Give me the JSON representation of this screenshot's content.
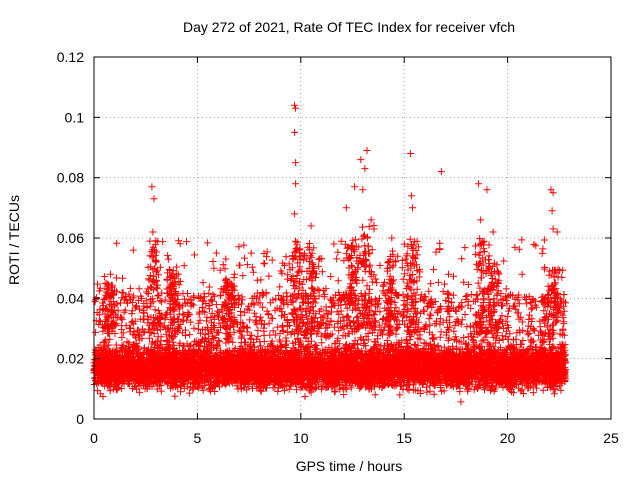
{
  "chart_data": {
    "type": "scatter",
    "title": "Day 272 of 2021, Rate Of TEC Index for receiver vfch",
    "xlabel": "GPS time / hours",
    "ylabel": "ROTI / TECUs",
    "xlim": [
      0,
      25
    ],
    "ylim": [
      0,
      0.12
    ],
    "xticks": [
      0,
      5,
      10,
      15,
      20,
      25
    ],
    "xtick_labels": [
      "0",
      "5",
      "10",
      "15",
      "20",
      "25"
    ],
    "yticks": [
      0,
      0.02,
      0.04,
      0.06,
      0.08,
      0.1,
      0.12
    ],
    "ytick_labels": [
      "0",
      "0.02",
      "0.04",
      "0.06",
      "0.08",
      "0.1",
      "0.12"
    ],
    "grid": true,
    "marker": "+",
    "color": "#ff0000",
    "series": [
      {
        "name": "ROTI",
        "description_range_hours": [
          0,
          22.8
        ],
        "typical_band": [
          0.01,
          0.03
        ],
        "spikes": [
          {
            "x": 0.8,
            "y": 0.048
          },
          {
            "x": 1.9,
            "y": 0.056
          },
          {
            "x": 2.8,
            "y": 0.077
          },
          {
            "x": 2.9,
            "y": 0.073
          },
          {
            "x": 2.85,
            "y": 0.062
          },
          {
            "x": 3.6,
            "y": 0.053
          },
          {
            "x": 5.8,
            "y": 0.05
          },
          {
            "x": 6.8,
            "y": 0.048
          },
          {
            "x": 7.6,
            "y": 0.055
          },
          {
            "x": 9.7,
            "y": 0.104
          },
          {
            "x": 9.75,
            "y": 0.103
          },
          {
            "x": 9.7,
            "y": 0.095
          },
          {
            "x": 9.75,
            "y": 0.085
          },
          {
            "x": 9.75,
            "y": 0.078
          },
          {
            "x": 9.7,
            "y": 0.068
          },
          {
            "x": 10.5,
            "y": 0.064
          },
          {
            "x": 11.6,
            "y": 0.058
          },
          {
            "x": 12.2,
            "y": 0.07
          },
          {
            "x": 12.6,
            "y": 0.077
          },
          {
            "x": 12.9,
            "y": 0.086
          },
          {
            "x": 13.2,
            "y": 0.089
          },
          {
            "x": 13.1,
            "y": 0.083
          },
          {
            "x": 13.0,
            "y": 0.076
          },
          {
            "x": 13.4,
            "y": 0.066
          },
          {
            "x": 14.4,
            "y": 0.06
          },
          {
            "x": 15.3,
            "y": 0.088
          },
          {
            "x": 15.35,
            "y": 0.074
          },
          {
            "x": 15.4,
            "y": 0.07
          },
          {
            "x": 16.8,
            "y": 0.082
          },
          {
            "x": 18.6,
            "y": 0.078
          },
          {
            "x": 19.0,
            "y": 0.076
          },
          {
            "x": 18.7,
            "y": 0.066
          },
          {
            "x": 19.3,
            "y": 0.062
          },
          {
            "x": 20.7,
            "y": 0.048
          },
          {
            "x": 22.1,
            "y": 0.076
          },
          {
            "x": 22.2,
            "y": 0.075
          },
          {
            "x": 22.15,
            "y": 0.069
          },
          {
            "x": 22.2,
            "y": 0.063
          },
          {
            "x": 22.4,
            "y": 0.062
          }
        ]
      }
    ]
  }
}
